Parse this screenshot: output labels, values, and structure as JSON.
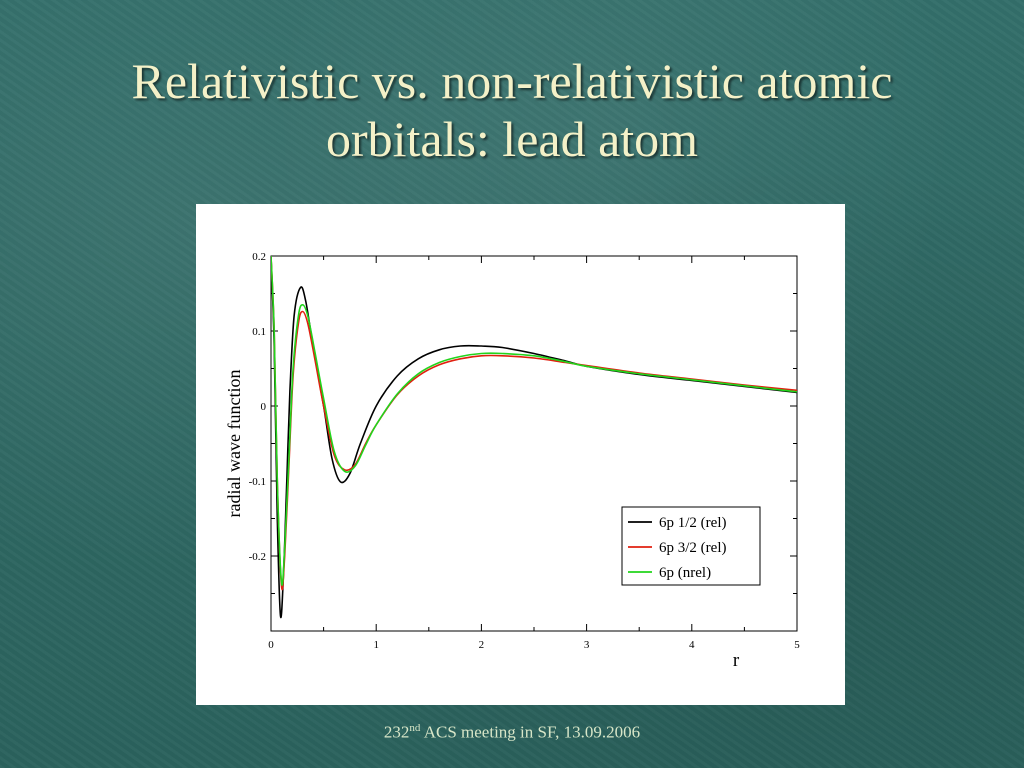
{
  "slide": {
    "title_line1": "Relativistic vs. non-relativistic atomic",
    "title_line2": "orbitals: lead atom",
    "footer_number": "232",
    "footer_sup": "nd",
    "footer_rest": " ACS meeting in SF, 13.09.2006",
    "colors": {
      "background": "#2f6b66",
      "title": "#f4f1c8",
      "footer": "#d8e6c8"
    }
  },
  "chart_data": {
    "type": "line",
    "xlabel": "r",
    "ylabel": "radial wave function",
    "xlim": [
      0,
      5
    ],
    "ylim": [
      -0.3,
      0.2
    ],
    "x_ticks": [
      "0",
      "1",
      "2",
      "3",
      "4",
      "5"
    ],
    "y_ticks": [
      "0.2",
      "0.1",
      "0",
      "-0.1",
      "-0.2"
    ],
    "grid": false,
    "legend_position": "bottom-right",
    "series": [
      {
        "name": "6p 1/2 (rel)",
        "color": "#000000",
        "points": [
          [
            0.0,
            0.2
          ],
          [
            0.03,
            0.08
          ],
          [
            0.06,
            -0.15
          ],
          [
            0.09,
            -0.28
          ],
          [
            0.12,
            -0.22
          ],
          [
            0.15,
            -0.1
          ],
          [
            0.18,
            0.02
          ],
          [
            0.22,
            0.12
          ],
          [
            0.28,
            0.158
          ],
          [
            0.33,
            0.14
          ],
          [
            0.4,
            0.08
          ],
          [
            0.5,
            0.0
          ],
          [
            0.58,
            -0.07
          ],
          [
            0.66,
            -0.101
          ],
          [
            0.75,
            -0.09
          ],
          [
            0.85,
            -0.05
          ],
          [
            1.0,
            0.0
          ],
          [
            1.2,
            0.04
          ],
          [
            1.4,
            0.063
          ],
          [
            1.6,
            0.075
          ],
          [
            1.8,
            0.08
          ],
          [
            2.0,
            0.08
          ],
          [
            2.2,
            0.078
          ],
          [
            2.5,
            0.07
          ],
          [
            2.8,
            0.06
          ],
          [
            3.0,
            0.053
          ],
          [
            3.5,
            0.042
          ],
          [
            4.0,
            0.034
          ],
          [
            4.5,
            0.026
          ],
          [
            5.0,
            0.018
          ]
        ]
      },
      {
        "name": "6p 3/2 (rel)",
        "color": "#e02010",
        "points": [
          [
            0.0,
            0.2
          ],
          [
            0.03,
            0.1
          ],
          [
            0.06,
            -0.1
          ],
          [
            0.1,
            -0.24
          ],
          [
            0.13,
            -0.2
          ],
          [
            0.17,
            -0.08
          ],
          [
            0.21,
            0.04
          ],
          [
            0.26,
            0.11
          ],
          [
            0.3,
            0.126
          ],
          [
            0.35,
            0.11
          ],
          [
            0.42,
            0.06
          ],
          [
            0.5,
            0.0
          ],
          [
            0.6,
            -0.065
          ],
          [
            0.7,
            -0.085
          ],
          [
            0.8,
            -0.078
          ],
          [
            0.9,
            -0.05
          ],
          [
            1.0,
            -0.025
          ],
          [
            1.2,
            0.015
          ],
          [
            1.4,
            0.04
          ],
          [
            1.6,
            0.055
          ],
          [
            1.8,
            0.063
          ],
          [
            2.0,
            0.067
          ],
          [
            2.2,
            0.067
          ],
          [
            2.5,
            0.064
          ],
          [
            2.8,
            0.058
          ],
          [
            3.0,
            0.054
          ],
          [
            3.5,
            0.044
          ],
          [
            4.0,
            0.036
          ],
          [
            4.5,
            0.028
          ],
          [
            5.0,
            0.021
          ]
        ]
      },
      {
        "name": "6p (nrel)",
        "color": "#22d41c",
        "points": [
          [
            0.0,
            0.2
          ],
          [
            0.03,
            0.1
          ],
          [
            0.06,
            -0.1
          ],
          [
            0.1,
            -0.235
          ],
          [
            0.13,
            -0.19
          ],
          [
            0.17,
            -0.07
          ],
          [
            0.21,
            0.05
          ],
          [
            0.26,
            0.12
          ],
          [
            0.3,
            0.135
          ],
          [
            0.35,
            0.12
          ],
          [
            0.42,
            0.07
          ],
          [
            0.5,
            0.01
          ],
          [
            0.6,
            -0.06
          ],
          [
            0.7,
            -0.087
          ],
          [
            0.8,
            -0.08
          ],
          [
            0.9,
            -0.052
          ],
          [
            1.0,
            -0.025
          ],
          [
            1.2,
            0.016
          ],
          [
            1.4,
            0.043
          ],
          [
            1.6,
            0.058
          ],
          [
            1.8,
            0.066
          ],
          [
            2.0,
            0.07
          ],
          [
            2.2,
            0.07
          ],
          [
            2.5,
            0.067
          ],
          [
            2.8,
            0.059
          ],
          [
            3.0,
            0.053
          ],
          [
            3.5,
            0.043
          ],
          [
            4.0,
            0.035
          ],
          [
            4.5,
            0.027
          ],
          [
            5.0,
            0.019
          ]
        ]
      }
    ]
  }
}
